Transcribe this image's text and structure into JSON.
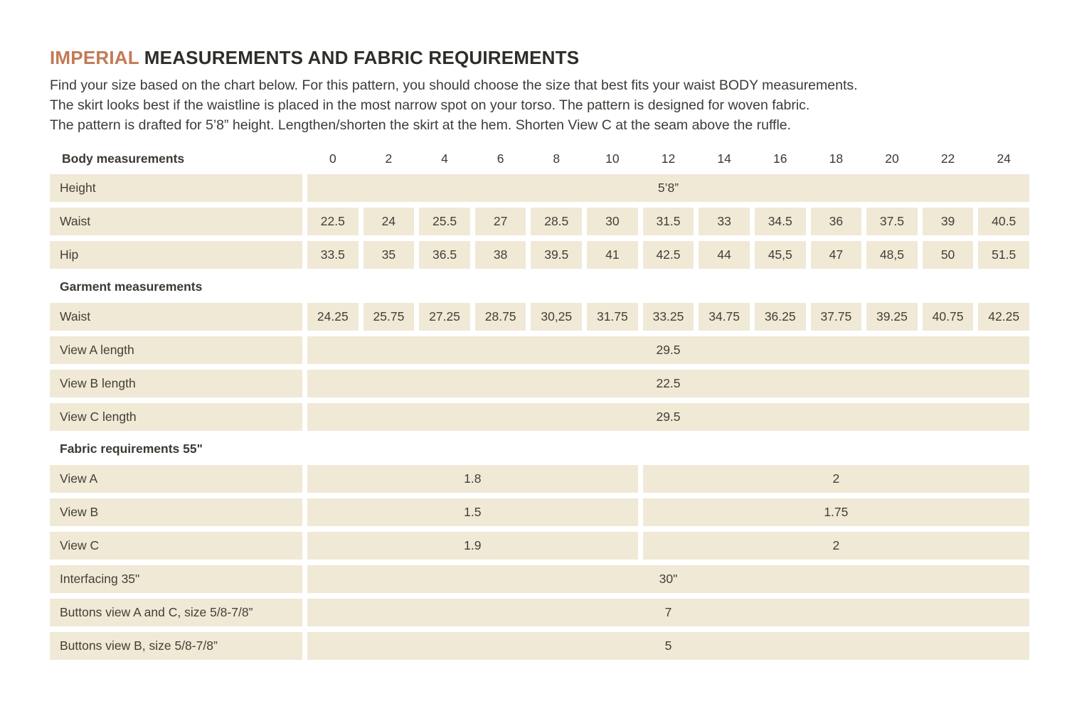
{
  "title": {
    "highlight": "IMPERIAL",
    "rest": "MEASUREMENTS AND FABRIC REQUIREMENTS"
  },
  "intro": [
    "Find your size based on the chart below. For this pattern, you should choose the size that best fits your waist BODY measurements.",
    "The skirt looks best if the waistline is placed in the most narrow spot on your torso. The pattern is designed for woven fabric.",
    "The pattern is drafted for 5’8” height. Lengthen/shorten the skirt at the hem. Shorten View C at the seam above the ruffle."
  ],
  "colors": {
    "accent": "#c37a55",
    "cell_background": "#f0e9d6",
    "text": "#3c3933",
    "page_background": "#ffffff"
  },
  "table": {
    "header": {
      "label": "Body measurements",
      "sizes": [
        "0",
        "2",
        "4",
        "6",
        "8",
        "10",
        "12",
        "14",
        "16",
        "18",
        "20",
        "22",
        "24"
      ]
    },
    "sections": [
      {
        "heading": null,
        "rows": [
          {
            "label": "Height",
            "span": "full",
            "value": "5’8”"
          },
          {
            "label": "Waist",
            "span": "cells",
            "values": [
              "22.5",
              "24",
              "25.5",
              "27",
              "28.5",
              "30",
              "31.5",
              "33",
              "34.5",
              "36",
              "37.5",
              "39",
              "40.5"
            ]
          },
          {
            "label": "Hip",
            "span": "cells",
            "values": [
              "33.5",
              "35",
              "36.5",
              "38",
              "39.5",
              "41",
              "42.5",
              "44",
              "45,5",
              "47",
              "48,5",
              "50",
              "51.5"
            ]
          }
        ]
      },
      {
        "heading": "Garment measurements",
        "rows": [
          {
            "label": "Waist",
            "span": "cells",
            "values": [
              "24.25",
              "25.75",
              "27.25",
              "28.75",
              "30,25",
              "31.75",
              "33.25",
              "34.75",
              "36.25",
              "37.75",
              "39.25",
              "40.75",
              "42.25"
            ]
          },
          {
            "label": "View A length",
            "span": "full",
            "value": "29.5"
          },
          {
            "label": "View B length",
            "span": "full",
            "value": "22.5"
          },
          {
            "label": "View C length",
            "span": "full",
            "value": "29.5"
          }
        ]
      },
      {
        "heading": "Fabric requirements 55\"",
        "rows": [
          {
            "label": "View A",
            "span": "split",
            "left": "1.8",
            "right": "2"
          },
          {
            "label": "View B",
            "span": "split",
            "left": "1.5",
            "right": "1.75"
          },
          {
            "label": "View C",
            "span": "split",
            "left": "1.9",
            "right": "2"
          },
          {
            "label": "Interfacing 35\"",
            "span": "full",
            "value": "30\""
          },
          {
            "label": "Buttons view A and C, size 5/8-7/8”",
            "span": "full",
            "value": "7"
          },
          {
            "label": "Buttons view B, size 5/8-7/8”",
            "span": "full",
            "value": "5"
          }
        ]
      }
    ]
  }
}
